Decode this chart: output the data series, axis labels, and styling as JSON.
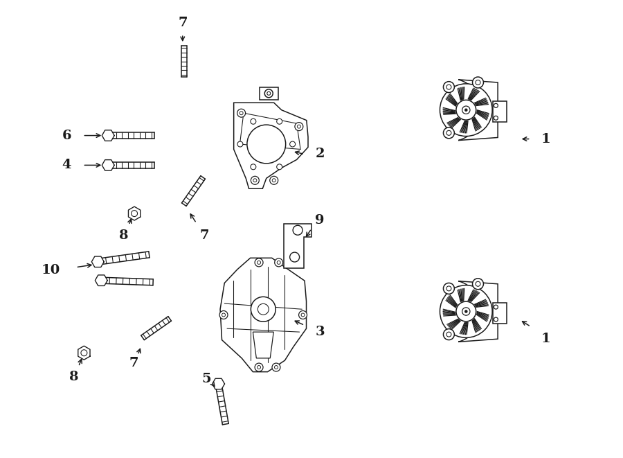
{
  "bg_color": "#ffffff",
  "line_color": "#1a1a1a",
  "lw": 1.1,
  "fig_width": 9.0,
  "fig_height": 6.61,
  "dpi": 100
}
